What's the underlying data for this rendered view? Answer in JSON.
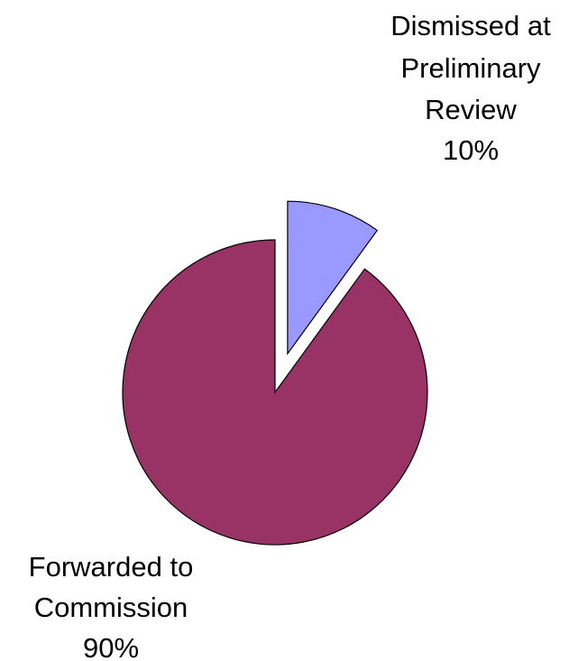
{
  "chart_data": {
    "type": "pie",
    "slices": [
      {
        "name": "Dismissed at Preliminary Review",
        "label_lines": [
          "Dismissed at",
          "Preliminary",
          "Review"
        ],
        "value": 10,
        "value_label": "10%",
        "color": "#9999ff",
        "exploded": true
      },
      {
        "name": "Forwarded to Commission",
        "label_lines": [
          "Forwarded to",
          "Commission"
        ],
        "value": 90,
        "value_label": "90%",
        "color": "#993366",
        "exploded": false
      }
    ]
  }
}
